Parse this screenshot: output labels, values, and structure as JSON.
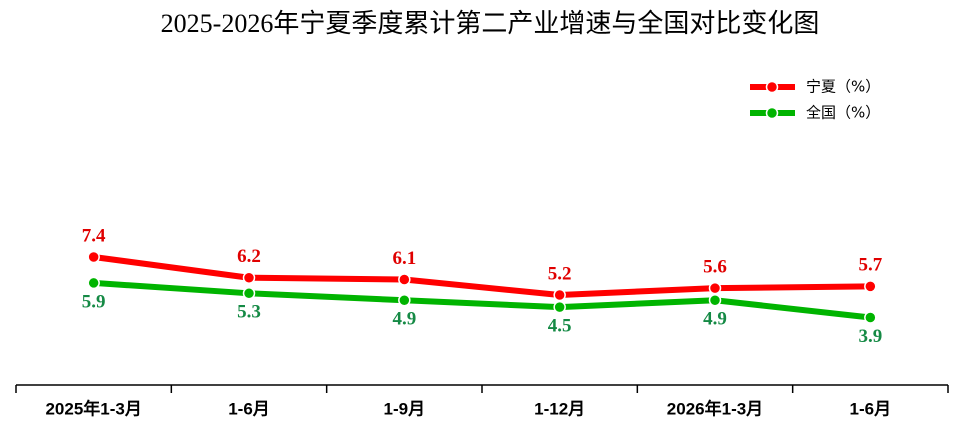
{
  "chart_data": {
    "type": "line",
    "title": "2025-2026年宁夏季度累计第二产业增速与全国对比变化图",
    "categories": [
      "2025年1-3月",
      "1-6月",
      "1-9月",
      "1-12月",
      "2026年1-3月",
      "1-6月"
    ],
    "series": [
      {
        "name": "宁夏（%）",
        "color": "#ff0000",
        "label_color": "#e00000",
        "values": [
          7.4,
          6.2,
          6.1,
          5.2,
          5.6,
          5.7
        ]
      },
      {
        "name": "全国（%）",
        "color": "#00b400",
        "label_color": "#158a45",
        "values": [
          5.9,
          5.3,
          4.9,
          4.5,
          4.9,
          3.9
        ]
      }
    ],
    "ylim": [
      0,
      10
    ],
    "legend": "top-right"
  }
}
